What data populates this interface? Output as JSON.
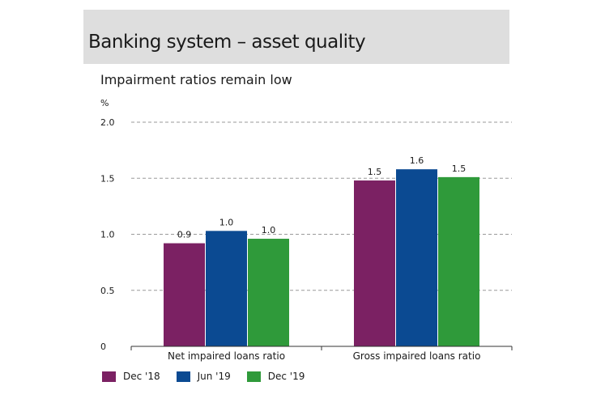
{
  "header": {
    "title": "Banking system – asset quality"
  },
  "chart_data": {
    "type": "bar",
    "title": "Impairment ratios remain low",
    "ylabel": "%",
    "ylim": [
      0,
      2.0
    ],
    "yticks": [
      "0",
      "0.5",
      "1.0",
      "1.5",
      "2.0"
    ],
    "grid": true,
    "legend_position": "bottom-left",
    "categories": [
      "Net impaired loans ratio",
      "Gross impaired loans ratio"
    ],
    "series": [
      {
        "name": "Dec '18",
        "color": "#7b2163",
        "values": [
          0.92,
          1.48
        ],
        "labels": [
          "0.9",
          "1.5"
        ]
      },
      {
        "name": "Jun '19",
        "color": "#0b4a92",
        "values": [
          1.03,
          1.58
        ],
        "labels": [
          "1.0",
          "1.6"
        ]
      },
      {
        "name": "Dec '19",
        "color": "#2f9a3a",
        "values": [
          0.96,
          1.51
        ],
        "labels": [
          "1.0",
          "1.5"
        ]
      }
    ]
  }
}
